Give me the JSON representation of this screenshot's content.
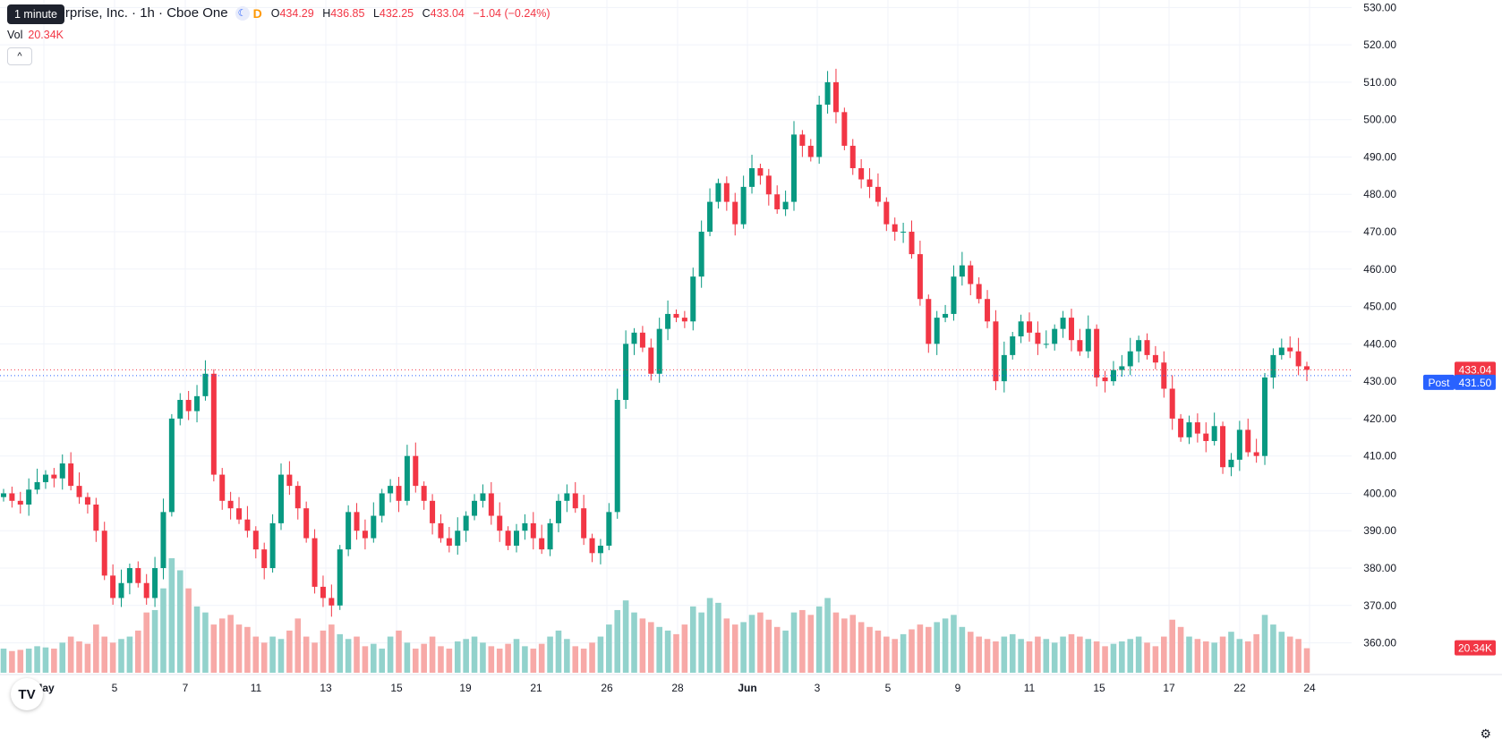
{
  "header": {
    "tooltip": "1 minute",
    "title": "Enterprise, Inc. · 1h · Cboe One",
    "ohlc": {
      "o_label": "O",
      "o": "434.29",
      "h_label": "H",
      "h": "436.85",
      "l_label": "L",
      "l": "432.25",
      "c_label": "C",
      "c": "433.04",
      "change": "−1.04 (−0.24%)"
    },
    "vol_label": "Vol",
    "vol_value": "20.34K",
    "collapse_icon": "^",
    "d_badge": "D"
  },
  "colors": {
    "up": "#089981",
    "down": "#f23645",
    "up_vol": "#92d2cc",
    "down_vol": "#f7a9a7",
    "post": "#2962ff"
  },
  "chart_data": {
    "type": "candlestick",
    "y_ticks": [
      "360.00",
      "370.00",
      "380.00",
      "390.00",
      "400.00",
      "410.00",
      "420.00",
      "430.00",
      "440.00",
      "450.00",
      "460.00",
      "470.00",
      "480.00",
      "490.00",
      "500.00",
      "510.00",
      "520.00",
      "530.00"
    ],
    "x_ticks": [
      "May",
      "5",
      "7",
      "11",
      "13",
      "15",
      "19",
      "21",
      "26",
      "28",
      "Jun",
      "3",
      "5",
      "9",
      "11",
      "15",
      "17",
      "22",
      "24"
    ],
    "price_labels": {
      "last": "433.04",
      "post_label": "Post",
      "post": "431.50",
      "volume": "20.34K"
    },
    "last_price": 433.04,
    "post_price": 431.5,
    "ylim": [
      352,
      532
    ],
    "closes": [
      400,
      398,
      397,
      401,
      403,
      405,
      404,
      408,
      402,
      399,
      397,
      390,
      378,
      372,
      376,
      380,
      376,
      372,
      380,
      395,
      420,
      425,
      422,
      426,
      432,
      405,
      398,
      396,
      393,
      390,
      385,
      380,
      392,
      405,
      402,
      396,
      388,
      375,
      372,
      370,
      385,
      395,
      390,
      388,
      394,
      400,
      402,
      398,
      410,
      402,
      398,
      392,
      388,
      386,
      390,
      394,
      398,
      400,
      394,
      390,
      386,
      390,
      392,
      388,
      385,
      392,
      398,
      400,
      396,
      388,
      384,
      386,
      395,
      425,
      440,
      443,
      439,
      432,
      444,
      448,
      447,
      446,
      458,
      470,
      478,
      483,
      478,
      472,
      482,
      487,
      485,
      480,
      476,
      478,
      496,
      493,
      490,
      504,
      510,
      502,
      493,
      487,
      484,
      482,
      478,
      472,
      470,
      470,
      464,
      452,
      440,
      447,
      448,
      458,
      461,
      456,
      452,
      446,
      430,
      437,
      442,
      446,
      443,
      440,
      440,
      444,
      447,
      441,
      438,
      444,
      431,
      430,
      433,
      434,
      438,
      441,
      437,
      435,
      428,
      420,
      415,
      419,
      416,
      414,
      418,
      407,
      409,
      417,
      411,
      410,
      431,
      437,
      439,
      438,
      434,
      433.04
    ],
    "volumes": [
      20,
      18,
      19,
      20,
      22,
      21,
      20,
      25,
      30,
      26,
      24,
      40,
      30,
      25,
      28,
      30,
      35,
      50,
      52,
      70,
      95,
      85,
      70,
      55,
      50,
      40,
      45,
      48,
      40,
      38,
      30,
      25,
      30,
      28,
      35,
      45,
      30,
      25,
      35,
      40,
      32,
      28,
      30,
      22,
      24,
      20,
      30,
      35,
      25,
      20,
      24,
      30,
      22,
      20,
      26,
      28,
      30,
      25,
      22,
      20,
      24,
      28,
      22,
      20,
      24,
      30,
      35,
      28,
      22,
      20,
      25,
      30,
      40,
      52,
      60,
      50,
      45,
      42,
      38,
      35,
      32,
      40,
      55,
      50,
      62,
      58,
      45,
      40,
      42,
      48,
      50,
      44,
      38,
      35,
      50,
      52,
      48,
      55,
      62,
      50,
      45,
      48,
      42,
      38,
      35,
      30,
      28,
      32,
      36,
      40,
      38,
      42,
      45,
      48,
      38,
      34,
      30,
      28,
      26,
      30,
      32,
      28,
      26,
      30,
      28,
      25,
      30,
      32,
      30,
      28,
      26,
      22,
      24,
      26,
      28,
      30,
      25,
      22,
      30,
      44,
      38,
      30,
      28,
      26,
      25,
      30,
      34,
      28,
      26,
      32,
      48,
      40,
      34,
      30,
      28,
      20.34
    ]
  }
}
